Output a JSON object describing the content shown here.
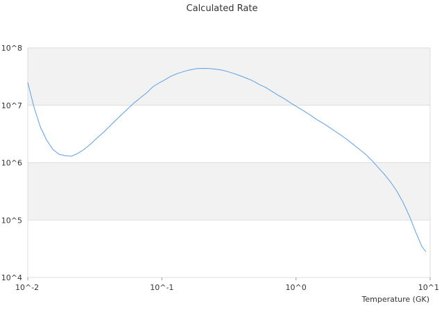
{
  "chart_data": {
    "type": "line",
    "title": "Calculated Rate",
    "xlabel": "Temperature (GK)",
    "ylabel": "",
    "x_scale": "log",
    "y_scale": "log",
    "xlim": [
      0.01,
      10
    ],
    "ylim": [
      10000,
      100000000
    ],
    "x_ticks": [
      "10^-2",
      "10^-1",
      "10^0",
      "10^1"
    ],
    "y_ticks": [
      "10^8",
      "10^7",
      "10^6",
      "10^5",
      "10^4"
    ],
    "grid": true,
    "legend": "none",
    "series": [
      {
        "color": "#5aa0e6",
        "x": [
          0.01,
          0.0111,
          0.0124,
          0.0138,
          0.0154,
          0.0171,
          0.019,
          0.0212,
          0.0236,
          0.0263,
          0.0293,
          0.0326,
          0.0363,
          0.0404,
          0.045,
          0.0501,
          0.0558,
          0.0621,
          0.0691,
          0.077,
          0.0857,
          0.0954,
          0.106,
          0.118,
          0.132,
          0.147,
          0.163,
          0.182,
          0.203,
          0.226,
          0.251,
          0.28,
          0.311,
          0.347,
          0.386,
          0.43,
          0.478,
          0.533,
          0.593,
          0.66,
          0.735,
          0.818,
          0.911,
          1.01,
          1.13,
          1.26,
          1.4,
          1.56,
          1.73,
          1.93,
          2.15,
          2.39,
          2.66,
          2.96,
          3.3,
          3.67,
          4.09,
          4.55,
          5.07,
          5.64,
          6.28,
          7.0,
          7.79,
          8.67,
          9.3
        ],
        "y": [
          25000000,
          9500000,
          4200000,
          2500000,
          1700000,
          1400000,
          1320000,
          1300000,
          1450000,
          1700000,
          2100000,
          2650000,
          3300000,
          4200000,
          5400000,
          6900000,
          8700000,
          11000000,
          13500000,
          16500000,
          21000000,
          24500000,
          28000000,
          32500000,
          36000000,
          39000000,
          41500000,
          43500000,
          44000000,
          43800000,
          42500000,
          41000000,
          38500000,
          35500000,
          32500000,
          29500000,
          26500000,
          23000000,
          20500000,
          17500000,
          15000000,
          13000000,
          11000000,
          9500000,
          8100000,
          6900000,
          5800000,
          5000000,
          4300000,
          3600000,
          3050000,
          2550000,
          2100000,
          1720000,
          1400000,
          1100000,
          830000,
          630000,
          460000,
          320000,
          205000,
          118000,
          63000,
          35000,
          28000
        ]
      }
    ]
  }
}
